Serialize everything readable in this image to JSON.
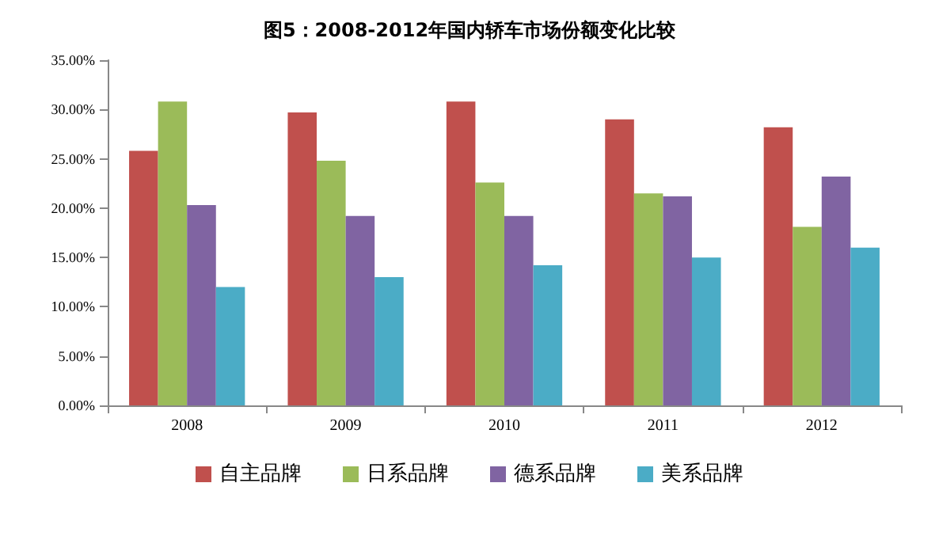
{
  "chart_data": {
    "type": "bar",
    "title": "图5：2008-2012年国内轿车市场份额变化比较",
    "categories": [
      "2008",
      "2009",
      "2010",
      "2011",
      "2012"
    ],
    "series": [
      {
        "name": "自主品牌",
        "color": "#c0504d",
        "values": [
          25.8,
          29.7,
          30.8,
          29.0,
          28.2
        ]
      },
      {
        "name": "日系品牌",
        "color": "#9bbb59",
        "values": [
          30.8,
          24.8,
          22.6,
          21.5,
          18.1
        ]
      },
      {
        "name": "德系品牌",
        "color": "#8064a2",
        "values": [
          20.3,
          19.2,
          19.2,
          21.2,
          23.2
        ]
      },
      {
        "name": "美系品牌",
        "color": "#4bacc6",
        "values": [
          12.0,
          13.0,
          14.2,
          15.0,
          16.0
        ]
      }
    ],
    "ylim": [
      0,
      35
    ],
    "yticks": [
      {
        "value": 0,
        "label": "0.00%"
      },
      {
        "value": 5,
        "label": "5.00%"
      },
      {
        "value": 10,
        "label": "10.00%"
      },
      {
        "value": 15,
        "label": "15.00%"
      },
      {
        "value": 20,
        "label": "20.00%"
      },
      {
        "value": 25,
        "label": "25.00%"
      },
      {
        "value": 30,
        "label": "30.00%"
      },
      {
        "value": 35,
        "label": "35.00%"
      }
    ],
    "grid": false,
    "legend": "bottom"
  }
}
